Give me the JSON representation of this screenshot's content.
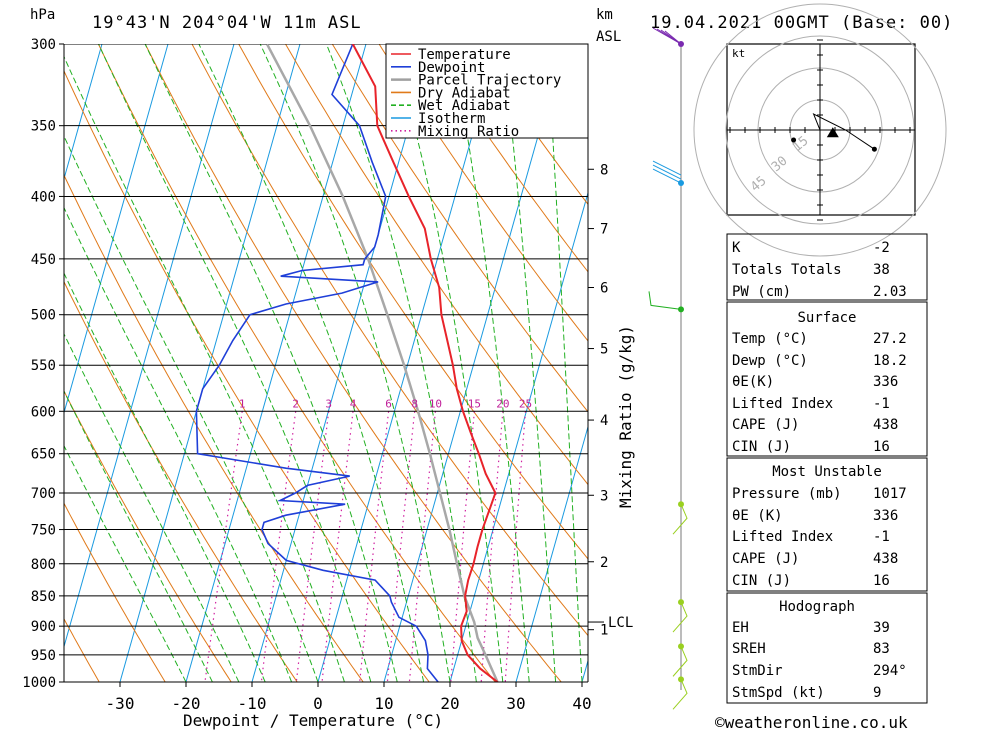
{
  "header": {
    "pressure_unit": "hPa",
    "location": "19°43'N  204°04'W  11m  ASL",
    "height_unit_top": "km",
    "height_unit_bottom": "ASL",
    "datetime": "19.04.2021  00GMT  (Base: 00)"
  },
  "chart_data": {
    "type": "line",
    "title": "",
    "xlabel": "Dewpoint / Temperature (°C)",
    "ylabel": "hPa",
    "right_axis_label": "Mixing Ratio (g/kg)",
    "x_ticks": [
      -30,
      -20,
      -10,
      0,
      10,
      20,
      30,
      40
    ],
    "x_range": [
      -40,
      40
    ],
    "pressure_ticks": [
      300,
      350,
      400,
      450,
      500,
      550,
      600,
      650,
      700,
      750,
      800,
      850,
      900,
      950,
      1000
    ],
    "pressure_range": [
      300,
      1000
    ],
    "km_ticks": [
      {
        "label": "8",
        "p": 380
      },
      {
        "label": "7",
        "p": 425
      },
      {
        "label": "6",
        "p": 475
      },
      {
        "label": "5",
        "p": 533
      },
      {
        "label": "4",
        "p": 610
      },
      {
        "label": "3",
        "p": 703
      },
      {
        "label": "2",
        "p": 797
      },
      {
        "label": "1",
        "p": 906
      }
    ],
    "lcl": {
      "label": "LCL",
      "p": 893
    },
    "mixing_ratio_labels": [
      "1",
      "2",
      "3",
      "4",
      "6",
      "8",
      "10",
      "15",
      "20",
      "25"
    ],
    "mixing_ratio_values": [
      1,
      2,
      3,
      4,
      6,
      8,
      10,
      15,
      20,
      25
    ],
    "legend": [
      {
        "name": "Temperature",
        "color": "#e8232a",
        "style": "solid"
      },
      {
        "name": "Dewpoint",
        "color": "#1f3fd8",
        "style": "solid"
      },
      {
        "name": "Parcel Trajectory",
        "color": "#a0a0a0",
        "style": "solid"
      },
      {
        "name": "Dry Adiabat",
        "color": "#e07a1a",
        "style": "solid"
      },
      {
        "name": "Wet Adiabat",
        "color": "#22b022",
        "style": "dashed"
      },
      {
        "name": "Isotherm",
        "color": "#1a9ae0",
        "style": "solid"
      },
      {
        "name": "Mixing Ratio",
        "color": "#d020a0",
        "style": "dotted"
      }
    ],
    "series": [
      {
        "name": "Temperature",
        "points": [
          [
            1000,
            27.2
          ],
          [
            975,
            24.0
          ],
          [
            950,
            21.5
          ],
          [
            925,
            20.0
          ],
          [
            900,
            19.3
          ],
          [
            875,
            19.5
          ],
          [
            850,
            18.6
          ],
          [
            825,
            18.4
          ],
          [
            800,
            18.5
          ],
          [
            775,
            18.4
          ],
          [
            750,
            18.4
          ],
          [
            725,
            18.6
          ],
          [
            700,
            18.8
          ],
          [
            675,
            16.5
          ],
          [
            650,
            14.6
          ],
          [
            625,
            12.5
          ],
          [
            600,
            10.4
          ],
          [
            575,
            8.5
          ],
          [
            550,
            6.9
          ],
          [
            525,
            5.0
          ],
          [
            500,
            3.0
          ],
          [
            475,
            1.5
          ],
          [
            450,
            -1.0
          ],
          [
            425,
            -3.2
          ],
          [
            400,
            -7.0
          ],
          [
            375,
            -10.8
          ],
          [
            350,
            -14.8
          ],
          [
            325,
            -16.8
          ],
          [
            300,
            -22.0
          ]
        ]
      },
      {
        "name": "Dewpoint",
        "points": [
          [
            1000,
            18.2
          ],
          [
            975,
            16.0
          ],
          [
            950,
            15.5
          ],
          [
            925,
            14.5
          ],
          [
            900,
            12.5
          ],
          [
            885,
            9.5
          ],
          [
            860,
            7.7
          ],
          [
            850,
            7.2
          ],
          [
            825,
            4.3
          ],
          [
            810,
            -4.0
          ],
          [
            795,
            -10.0
          ],
          [
            770,
            -13.5
          ],
          [
            750,
            -15.0
          ],
          [
            740,
            -15.0
          ],
          [
            730,
            -12.0
          ],
          [
            715,
            -3.5
          ],
          [
            710,
            -13.5
          ],
          [
            700,
            -11.5
          ],
          [
            690,
            -10.0
          ],
          [
            678,
            -4.0
          ],
          [
            668,
            -14.0
          ],
          [
            650,
            -28.0
          ],
          [
            600,
            -30.0
          ],
          [
            575,
            -30.0
          ],
          [
            550,
            -28.5
          ],
          [
            525,
            -27.5
          ],
          [
            500,
            -26.0
          ],
          [
            490,
            -21.0
          ],
          [
            480,
            -13.0
          ],
          [
            470,
            -8.0
          ],
          [
            465,
            -23.0
          ],
          [
            460,
            -20.0
          ],
          [
            455,
            -11.0
          ],
          [
            450,
            -11.0
          ],
          [
            440,
            -10.0
          ],
          [
            430,
            -10.0
          ],
          [
            400,
            -10.5
          ],
          [
            375,
            -14.0
          ],
          [
            350,
            -17.5
          ],
          [
            330,
            -23.0
          ],
          [
            300,
            -22.0
          ]
        ]
      },
      {
        "name": "Parcel Trajectory",
        "points": [
          [
            1000,
            27.2
          ],
          [
            950,
            24.2
          ],
          [
            920,
            22.3
          ],
          [
            893,
            21.1
          ],
          [
            850,
            18.5
          ],
          [
            800,
            16.0
          ],
          [
            750,
            13.4
          ],
          [
            700,
            10.4
          ],
          [
            650,
            7.2
          ],
          [
            600,
            3.6
          ],
          [
            550,
            -0.5
          ],
          [
            500,
            -5.2
          ],
          [
            450,
            -10.5
          ],
          [
            400,
            -17.0
          ],
          [
            350,
            -25.0
          ],
          [
            300,
            -35.0
          ]
        ]
      }
    ],
    "wind_barbs": [
      {
        "p": 300,
        "color": "#7a2ab0"
      },
      {
        "p": 390,
        "color": "#1a9ae0"
      },
      {
        "p": 495,
        "color": "#22b022"
      },
      {
        "p": 715,
        "color": "#9ad020"
      },
      {
        "p": 860,
        "color": "#9ad020"
      },
      {
        "p": 935,
        "color": "#9ad020"
      },
      {
        "p": 995,
        "color": "#9ad020"
      }
    ]
  },
  "hodograph": {
    "unit": "kt",
    "ring_labels": [
      "15",
      "30",
      "45"
    ],
    "trace": [
      [
        0,
        0
      ],
      [
        -2,
        5
      ],
      [
        8,
        0
      ],
      [
        17,
        -6
      ]
    ],
    "storm_motion": [
      4,
      -1
    ]
  },
  "indices": {
    "rows": [
      {
        "label": "K",
        "value": "-2"
      },
      {
        "label": "Totals Totals",
        "value": "38"
      },
      {
        "label": "PW (cm)",
        "value": "2.03"
      }
    ]
  },
  "surface": {
    "title": "Surface",
    "rows": [
      {
        "label": "Temp (°C)",
        "value": "27.2"
      },
      {
        "label": "Dewp (°C)",
        "value": "18.2"
      },
      {
        "label": "θE(K)",
        "value": "336"
      },
      {
        "label": "Lifted Index",
        "value": "-1"
      },
      {
        "label": "CAPE (J)",
        "value": "438"
      },
      {
        "label": "CIN (J)",
        "value": "16"
      }
    ]
  },
  "most_unstable": {
    "title": "Most Unstable",
    "rows": [
      {
        "label": "Pressure (mb)",
        "value": "1017"
      },
      {
        "label": "θE (K)",
        "value": "336"
      },
      {
        "label": "Lifted Index",
        "value": "-1"
      },
      {
        "label": "CAPE (J)",
        "value": "438"
      },
      {
        "label": "CIN (J)",
        "value": "16"
      }
    ]
  },
  "hodograph_table": {
    "title": "Hodograph",
    "rows": [
      {
        "label": "EH",
        "value": "39"
      },
      {
        "label": "SREH",
        "value": "83"
      },
      {
        "label": "StmDir",
        "value": "294°"
      },
      {
        "label": "StmSpd (kt)",
        "value": "9"
      }
    ]
  },
  "footer": {
    "credit": "©weatheronline.co.uk"
  }
}
